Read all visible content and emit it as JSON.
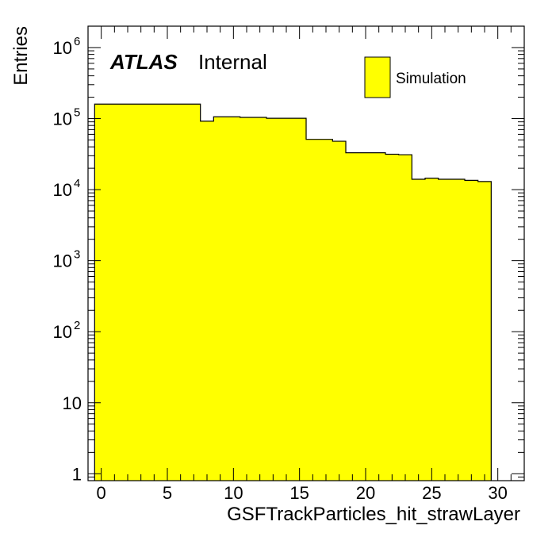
{
  "chart_data": {
    "type": "bar",
    "style": "step-histogram",
    "xlabel": "GSFTrackParticles_hit_strawLayer",
    "ylabel": "Entries",
    "xlim": [
      -1,
      32
    ],
    "ylim": [
      0.8,
      2000000
    ],
    "yscale": "log",
    "grid": false,
    "legend_position": "top-right",
    "bin_width": 1,
    "bin_start": -0.5,
    "values": [
      160000,
      160000,
      160000,
      160000,
      160000,
      160000,
      160000,
      160000,
      92000,
      106000,
      106000,
      104000,
      104000,
      101000,
      101000,
      101000,
      51000,
      51000,
      48000,
      33000,
      33000,
      33000,
      31500,
      31000,
      14000,
      14500,
      14000,
      14000,
      13500,
      13000
    ],
    "fill_color": "#ffff00",
    "line_color": "#000000",
    "x_ticks": [
      0,
      5,
      10,
      15,
      20,
      25,
      30
    ],
    "x_tick_labels": [
      "0",
      "5",
      "10",
      "15",
      "20",
      "25",
      "30"
    ],
    "y_tick_labels": [
      "1",
      "10",
      "10",
      "10",
      "10",
      "10",
      "10"
    ],
    "y_tick_exponents": [
      "",
      "",
      "2",
      "3",
      "4",
      "5",
      "6"
    ],
    "series": [
      {
        "name": "Simulation"
      }
    ],
    "annotations": {
      "atlas": "ATLAS",
      "internal": "Internal"
    }
  }
}
